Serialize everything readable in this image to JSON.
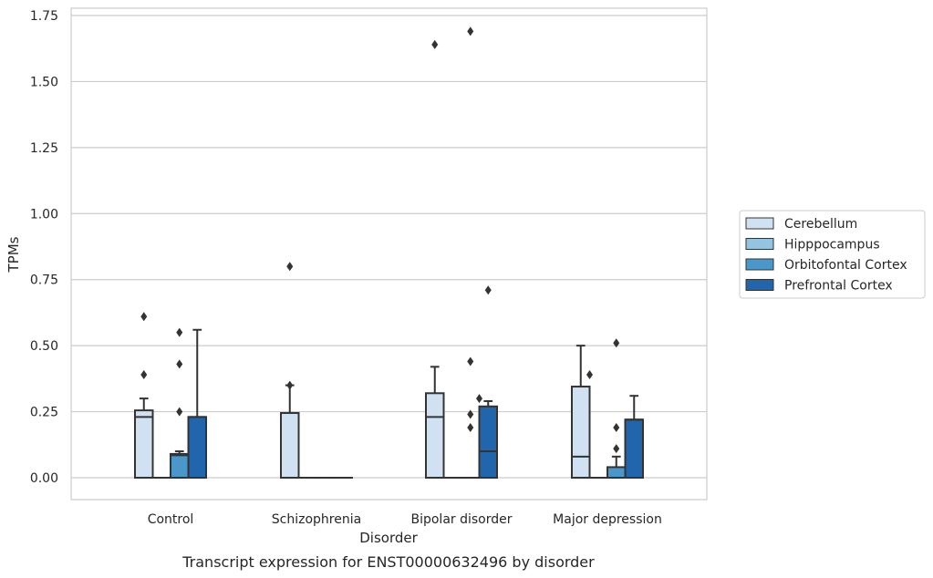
{
  "chart_data": {
    "type": "box",
    "xlabel": "Disorder",
    "ylabel": "TPMs",
    "caption": "Transcript expression for ENST00000632496 by disorder",
    "categories": [
      "Control",
      "Schizophrenia",
      "Bipolar disorder",
      "Major depression"
    ],
    "ylim": [
      -0.08,
      1.76
    ],
    "yticks": [
      0.0,
      0.25,
      0.5,
      0.75,
      1.0,
      1.25,
      1.5,
      1.75
    ],
    "ytick_labels": [
      "0.00",
      "0.25",
      "0.50",
      "0.75",
      "1.00",
      "1.25",
      "1.50",
      "1.75"
    ],
    "grid": "horizontal",
    "legend_position": "right",
    "series": [
      {
        "name": "Cerebellum",
        "color": "#d0e1f2",
        "boxes": [
          {
            "q1": 0.0,
            "median": 0.23,
            "q3": 0.255,
            "whisker_low": 0.0,
            "whisker_high": 0.3,
            "outliers": [
              0.39,
              0.61
            ]
          },
          {
            "q1": 0.0,
            "median": 0.0,
            "q3": 0.245,
            "whisker_low": 0.0,
            "whisker_high": 0.35,
            "outliers": [
              0.35,
              0.8
            ]
          },
          {
            "q1": 0.0,
            "median": 0.23,
            "q3": 0.32,
            "whisker_low": 0.0,
            "whisker_high": 0.42,
            "outliers": [
              1.64
            ]
          },
          {
            "q1": 0.0,
            "median": 0.08,
            "q3": 0.345,
            "whisker_low": 0.0,
            "whisker_high": 0.5,
            "outliers": []
          }
        ]
      },
      {
        "name": "Hipppocampus",
        "color": "#94c4df",
        "boxes": [
          {
            "q1": 0.0,
            "median": 0.0,
            "q3": 0.0,
            "whisker_low": 0.0,
            "whisker_high": 0.0,
            "outliers": []
          },
          {
            "q1": 0.0,
            "median": 0.0,
            "q3": 0.0,
            "whisker_low": 0.0,
            "whisker_high": 0.0,
            "outliers": []
          },
          {
            "q1": 0.0,
            "median": 0.0,
            "q3": 0.0,
            "whisker_low": 0.0,
            "whisker_high": 0.0,
            "outliers": []
          },
          {
            "q1": 0.0,
            "median": 0.0,
            "q3": 0.0,
            "whisker_low": 0.0,
            "whisker_high": 0.0,
            "outliers": []
          }
        ]
      },
      {
        "name": "Orbitofontal Cortex",
        "color": "#4a98c9",
        "boxes": [
          {
            "q1": 0.0,
            "median": 0.085,
            "q3": 0.09,
            "whisker_low": 0.0,
            "whisker_high": 0.1,
            "outliers": [
              0.25,
              0.43,
              0.55
            ]
          },
          {
            "q1": 0.0,
            "median": 0.0,
            "q3": 0.0,
            "whisker_low": 0.0,
            "whisker_high": 0.0,
            "outliers": []
          },
          {
            "q1": 0.0,
            "median": 0.0,
            "q3": 0.0,
            "whisker_low": 0.0,
            "whisker_high": 0.0,
            "outliers": [
              0.19,
              0.24,
              0.44,
              1.69
            ]
          },
          {
            "q1": 0.0,
            "median": 0.0,
            "q3": 0.04,
            "whisker_low": 0.0,
            "whisker_high": 0.08,
            "outliers": [
              0.11,
              0.19,
              0.51
            ]
          }
        ]
      },
      {
        "name": "Prefrontal Cortex",
        "color": "#2166ac",
        "boxes": [
          {
            "q1": 0.0,
            "median": 0.23,
            "q3": 0.23,
            "whisker_low": 0.0,
            "whisker_high": 0.56,
            "outliers": []
          },
          {
            "q1": 0.0,
            "median": 0.0,
            "q3": 0.0,
            "whisker_low": 0.0,
            "whisker_high": 0.0,
            "outliers": []
          },
          {
            "q1": 0.0,
            "median": 0.1,
            "q3": 0.27,
            "whisker_low": 0.0,
            "whisker_high": 0.29,
            "outliers": [
              0.71
            ]
          },
          {
            "q1": 0.0,
            "median": 0.22,
            "q3": 0.22,
            "whisker_low": 0.0,
            "whisker_high": 0.31,
            "outliers": []
          }
        ]
      }
    ],
    "extra_outliers": [
      {
        "category": "Bipolar disorder",
        "position": "between-3-4",
        "value": 0.3
      },
      {
        "category": "Major depression",
        "position": "between-1-2",
        "value": 0.39
      }
    ]
  }
}
